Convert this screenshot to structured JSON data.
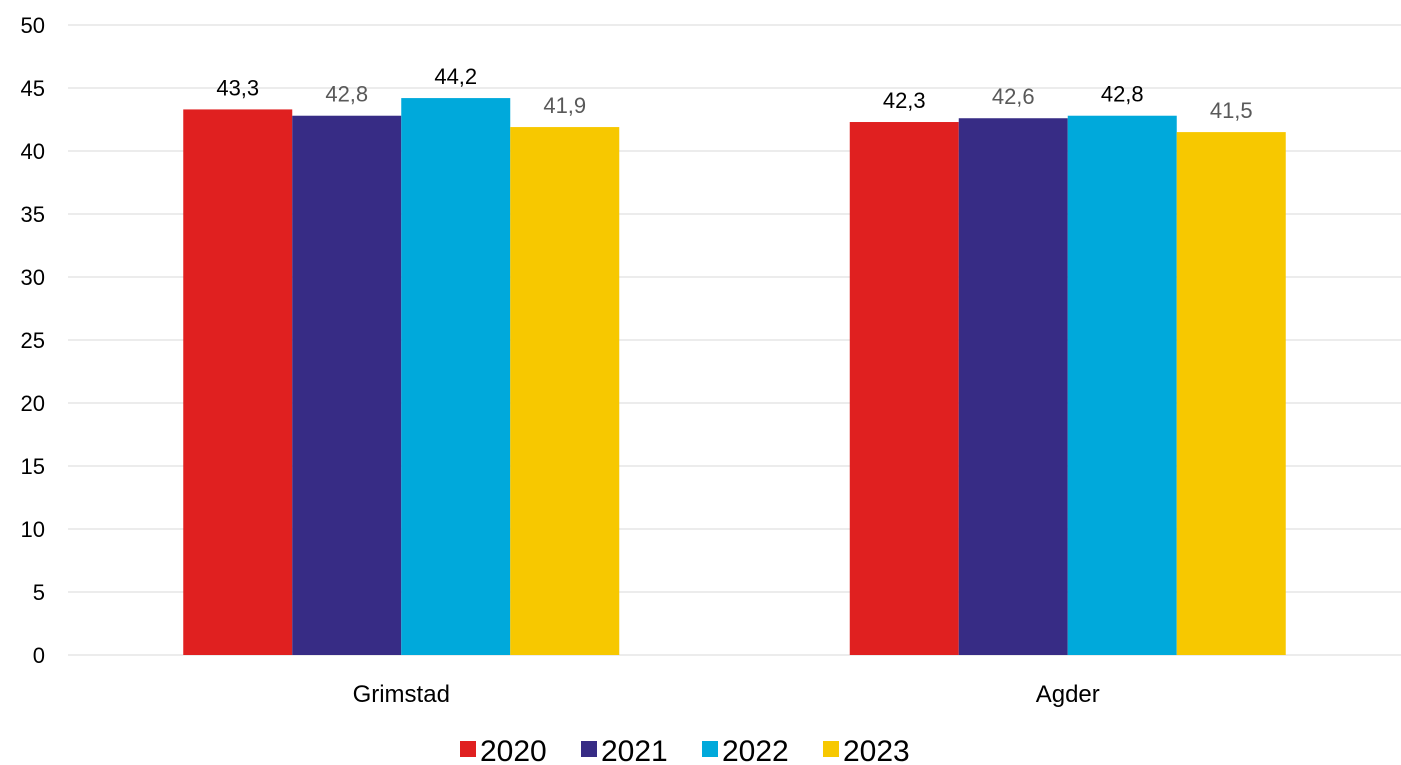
{
  "chart_data": {
    "type": "bar",
    "categories": [
      "Grimstad",
      "Agder"
    ],
    "series": [
      {
        "name": "2020",
        "color": "#E02020",
        "values": [
          43.3,
          42.3
        ],
        "labels": [
          "43,3",
          "42,3"
        ],
        "label_color": "#000000"
      },
      {
        "name": "2021",
        "color": "#372C85",
        "values": [
          42.8,
          42.6
        ],
        "labels": [
          "42,8",
          "42,6"
        ],
        "label_color": "#595959"
      },
      {
        "name": "2022",
        "color": "#00A9DB",
        "values": [
          44.2,
          42.8
        ],
        "labels": [
          "44,2",
          "42,8"
        ],
        "label_color": "#000000"
      },
      {
        "name": "2023",
        "color": "#F7C800",
        "values": [
          41.9,
          41.5
        ],
        "labels": [
          "41,9",
          "41,5"
        ],
        "label_color": "#595959"
      }
    ],
    "y_ticks": [
      "0",
      "5",
      "10",
      "15",
      "20",
      "25",
      "30",
      "35",
      "40",
      "45",
      "50"
    ],
    "ylim": [
      0,
      50
    ],
    "grid": true,
    "legend_position": "bottom",
    "title": "",
    "xlabel": "",
    "ylabel": ""
  }
}
